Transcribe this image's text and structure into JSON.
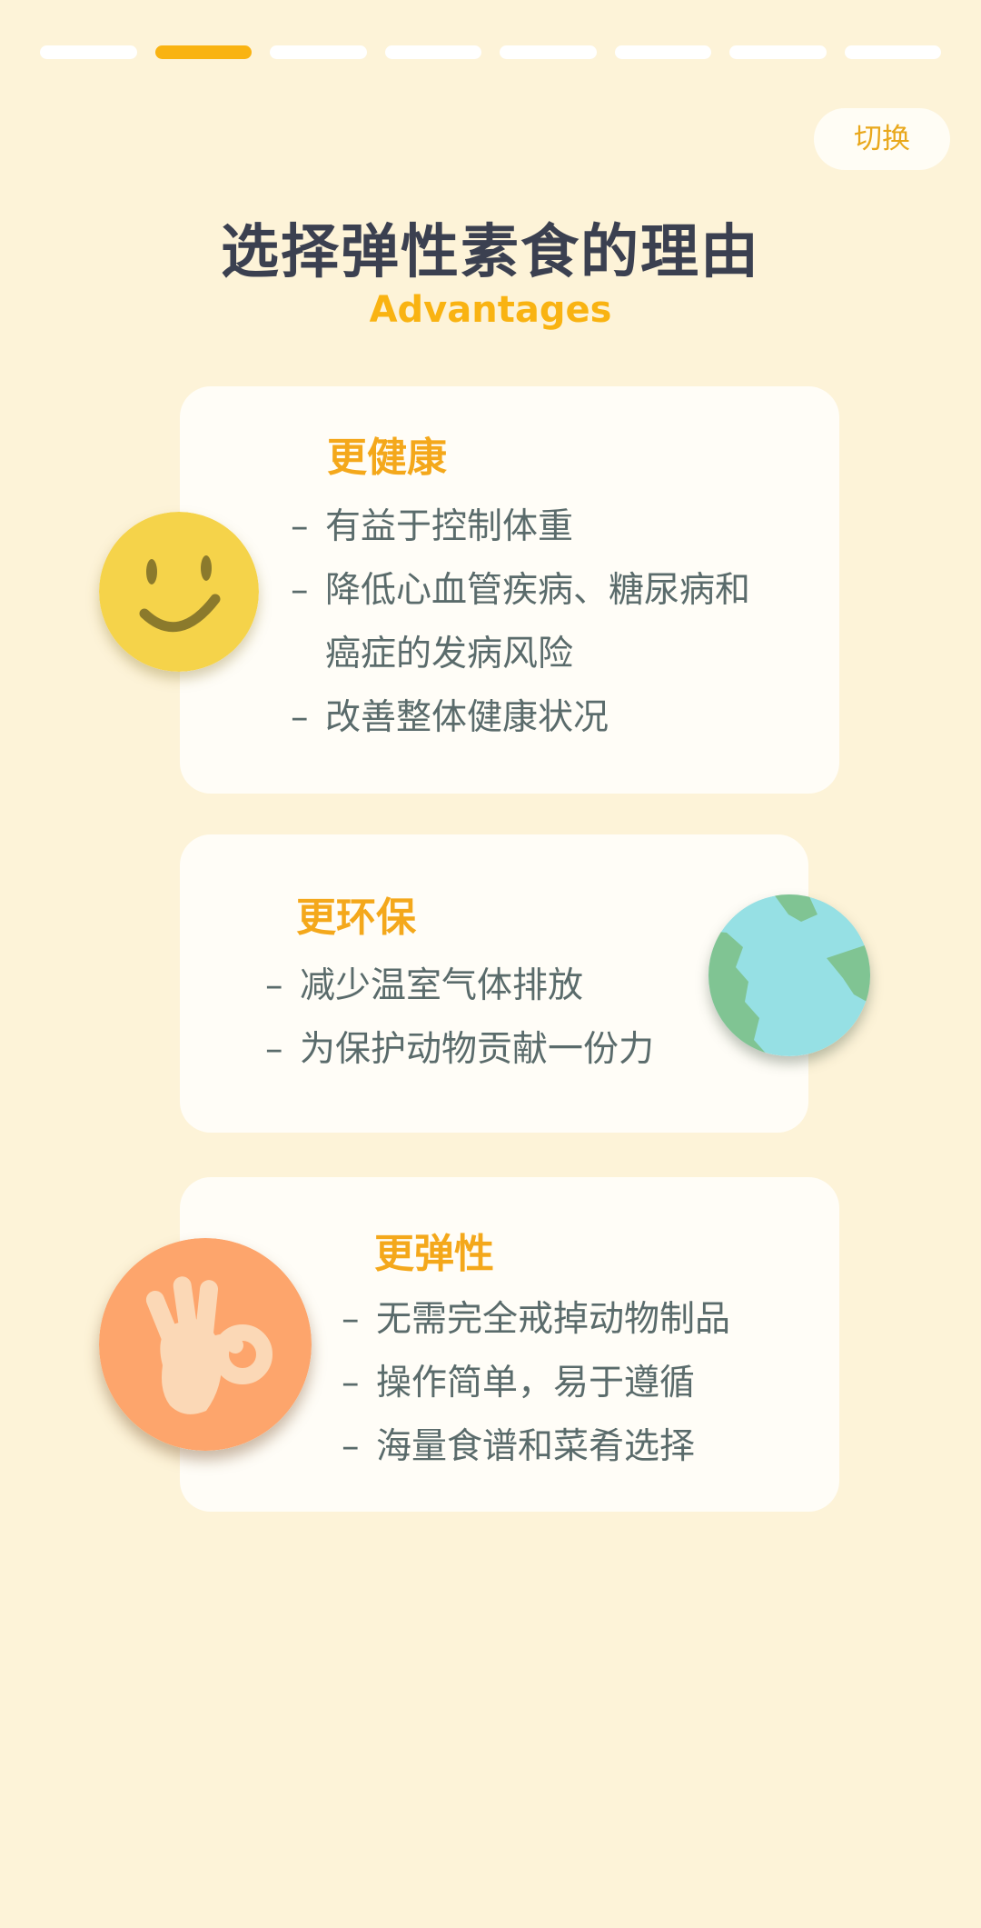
{
  "progress": {
    "total": 8,
    "active_index": 1
  },
  "switch_label": "切换",
  "title": "选择弹性素食的理由",
  "subtitle": "Advantages",
  "cards": [
    {
      "title": "更健康",
      "icon": "smiley-face-icon",
      "items": [
        "有益于控制体重",
        "降低心血管疾病、糖尿病和\n癌症的发病风险",
        "改善整体健康状况"
      ]
    },
    {
      "title": "更环保",
      "icon": "earth-globe-icon",
      "items": [
        "减少温室气体排放",
        "为保护动物贡献一份力"
      ]
    },
    {
      "title": "更弹性",
      "icon": "ok-hand-icon",
      "items": [
        "无需完全戒掉动物制品",
        "操作简单，易于遵循",
        "海量食谱和菜肴选择"
      ]
    }
  ],
  "colors": {
    "background": "#fdf3d8",
    "accent": "#f9b312",
    "title": "#3b4050",
    "text": "#5a6b6b",
    "card": "#fffdf7"
  }
}
